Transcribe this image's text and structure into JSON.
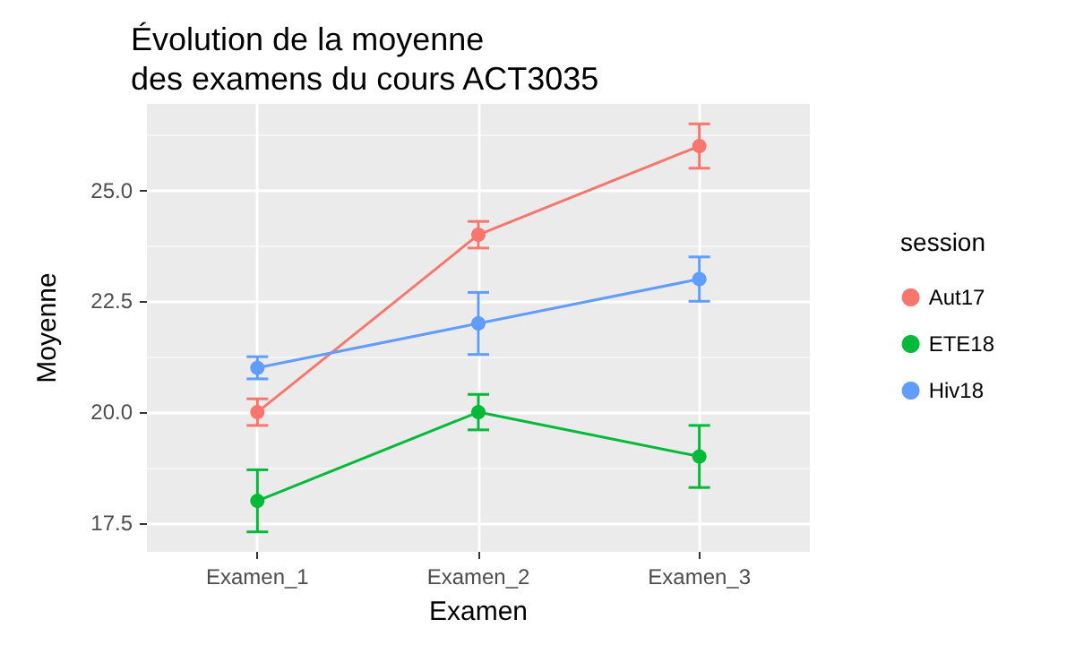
{
  "chart_data": {
    "type": "line",
    "title": "Évolution de la moyenne\ndes examens du cours ACT3035",
    "xlabel": "Examen",
    "ylabel": "Moyenne",
    "legend_title": "session",
    "categories": [
      "Examen_1",
      "Examen_2",
      "Examen_3"
    ],
    "series": [
      {
        "name": "Aut17",
        "color": "#f8766d",
        "values": [
          20,
          24,
          26
        ],
        "errors": [
          0.3,
          0.3,
          0.5
        ]
      },
      {
        "name": "ETE18",
        "color": "#00ba38",
        "values": [
          18,
          20,
          19
        ],
        "errors": [
          0.7,
          0.4,
          0.7
        ]
      },
      {
        "name": "Hiv18",
        "color": "#619cff",
        "values": [
          21,
          22,
          23
        ],
        "errors": [
          0.25,
          0.7,
          0.5
        ]
      }
    ],
    "ylim": [
      16.85,
      26.95
    ],
    "yticks": [
      17.5,
      {
        "value": 20,
        "label": "20.0"
      },
      22.5,
      {
        "value": 25,
        "label": "25.0"
      }
    ],
    "grid": true,
    "legend": "right",
    "marker": "circle",
    "line_style": "solid"
  }
}
